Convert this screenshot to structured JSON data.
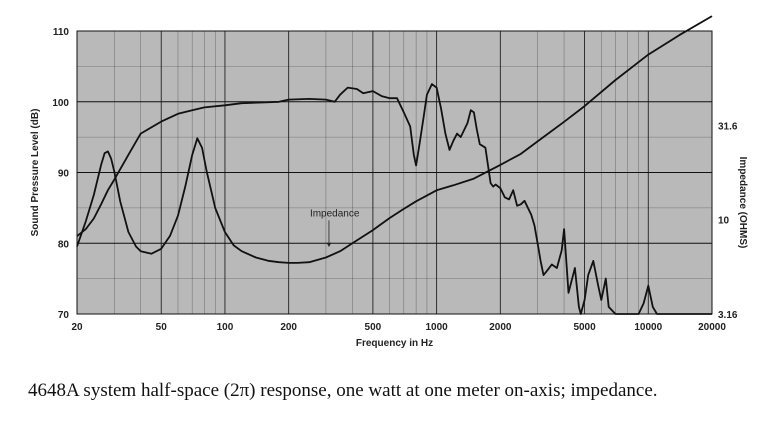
{
  "chart_data": {
    "type": "line",
    "title": "",
    "xlabel": "Frequency in Hz",
    "ylabel_left": "Sound Pressure Level (dB)",
    "ylabel_right": "Impedance (OHMS)",
    "x_scale": "log",
    "xlim": [
      20,
      20000
    ],
    "ylim_left": [
      70,
      110
    ],
    "ylim_right": [
      3.16,
      100
    ],
    "y_right_scale": "log",
    "grid": true,
    "x_ticks": [
      20,
      50,
      100,
      200,
      500,
      1000,
      2000,
      5000,
      10000,
      20000
    ],
    "x_tick_labels": [
      "20",
      "50",
      "100",
      "200",
      "500",
      "1000",
      "2000",
      "5000",
      "10000",
      "20000"
    ],
    "y_left_ticks": [
      70,
      80,
      90,
      100,
      110
    ],
    "y_left_tick_labels": [
      "70",
      "80",
      "90",
      "100",
      "110"
    ],
    "y_right_ticks": [
      3.16,
      10,
      31.6
    ],
    "y_right_tick_labels": [
      "3.16",
      "10",
      "31.6"
    ],
    "annotations": [
      {
        "text": "Impedance",
        "x": 330,
        "y": 83.8,
        "arrow_to": [
          310,
          79.5
        ]
      }
    ],
    "series": [
      {
        "axis": "left",
        "x": [
          20,
          22,
          24,
          26,
          28,
          30,
          35,
          40,
          50,
          60,
          70,
          80,
          100,
          120,
          150,
          180,
          200,
          250,
          300,
          330,
          350,
          380,
          420,
          450,
          500,
          550,
          600,
          650,
          700,
          750,
          780,
          800,
          830,
          870,
          900,
          950,
          1000,
          1050,
          1100,
          1150,
          1200,
          1250,
          1300,
          1400,
          1450,
          1500,
          1550,
          1600,
          1700,
          1800,
          1850,
          1900,
          2000,
          2100,
          2200,
          2300,
          2400,
          2500,
          2600,
          2800,
          2900,
          3000,
          3100,
          3200,
          3300,
          3500,
          3700,
          3900,
          4000,
          4200,
          4500,
          4700,
          4800,
          5000,
          5200,
          5500,
          5800,
          6000,
          6300,
          6500,
          7000,
          7500,
          8000,
          9000,
          9500,
          10000,
          10500,
          11000,
          12000,
          15000,
          20000
        ],
        "values": [
          81,
          82,
          83.5,
          85.5,
          87.5,
          89,
          92.5,
          95.5,
          97.2,
          98.3,
          98.8,
          99.2,
          99.5,
          99.8,
          99.9,
          100,
          100.3,
          100.4,
          100.3,
          100,
          101,
          102,
          101.8,
          101.2,
          101.5,
          100.8,
          100.5,
          100.5,
          98.5,
          96.5,
          92.5,
          91,
          94,
          98,
          101,
          102.5,
          102,
          99,
          95.5,
          93.2,
          94.5,
          95.5,
          95,
          97,
          98.8,
          98.5,
          96,
          94,
          93.5,
          88.5,
          88,
          88.3,
          87.8,
          86.5,
          86.2,
          87.5,
          85.3,
          85.5,
          86,
          84,
          82.5,
          80,
          77.5,
          75.5,
          76,
          77,
          76.5,
          79,
          82,
          73,
          76.5,
          71,
          70,
          72,
          75.5,
          77.5,
          74,
          72,
          75,
          71,
          70,
          70,
          70,
          70,
          71.5,
          74,
          71,
          70,
          70,
          70,
          70
        ]
      },
      {
        "axis": "right",
        "x": [
          20,
          22,
          24,
          26,
          27,
          28,
          29,
          30,
          32,
          35,
          38,
          40,
          45,
          50,
          55,
          60,
          65,
          70,
          74,
          78,
          82,
          90,
          100,
          110,
          120,
          140,
          160,
          180,
          200,
          220,
          250,
          300,
          350,
          400,
          500,
          600,
          700,
          800,
          1000,
          1200,
          1500,
          2000,
          2500,
          3000,
          4000,
          5000,
          7000,
          10000,
          14000,
          20000
        ],
        "values": [
          7.2,
          9.8,
          13.5,
          19.5,
          22.5,
          23,
          21,
          18,
          12.5,
          8.6,
          7.2,
          6.8,
          6.6,
          7,
          8.2,
          10.5,
          15,
          22,
          27,
          24,
          18,
          11.5,
          8.6,
          7.3,
          6.8,
          6.3,
          6.05,
          5.95,
          5.9,
          5.9,
          5.95,
          6.3,
          6.8,
          7.5,
          8.8,
          10.2,
          11.4,
          12.5,
          14.3,
          15.2,
          16.5,
          19.5,
          22.3,
          26,
          33,
          40,
          55,
          75,
          95,
          120
        ]
      }
    ],
    "colors": {
      "plot_background": "#b9b9b9",
      "line": "#111111",
      "grid": "#111111"
    }
  },
  "caption": "4648A system half-space (2π) response, one watt at one meter on-axis; impedance."
}
